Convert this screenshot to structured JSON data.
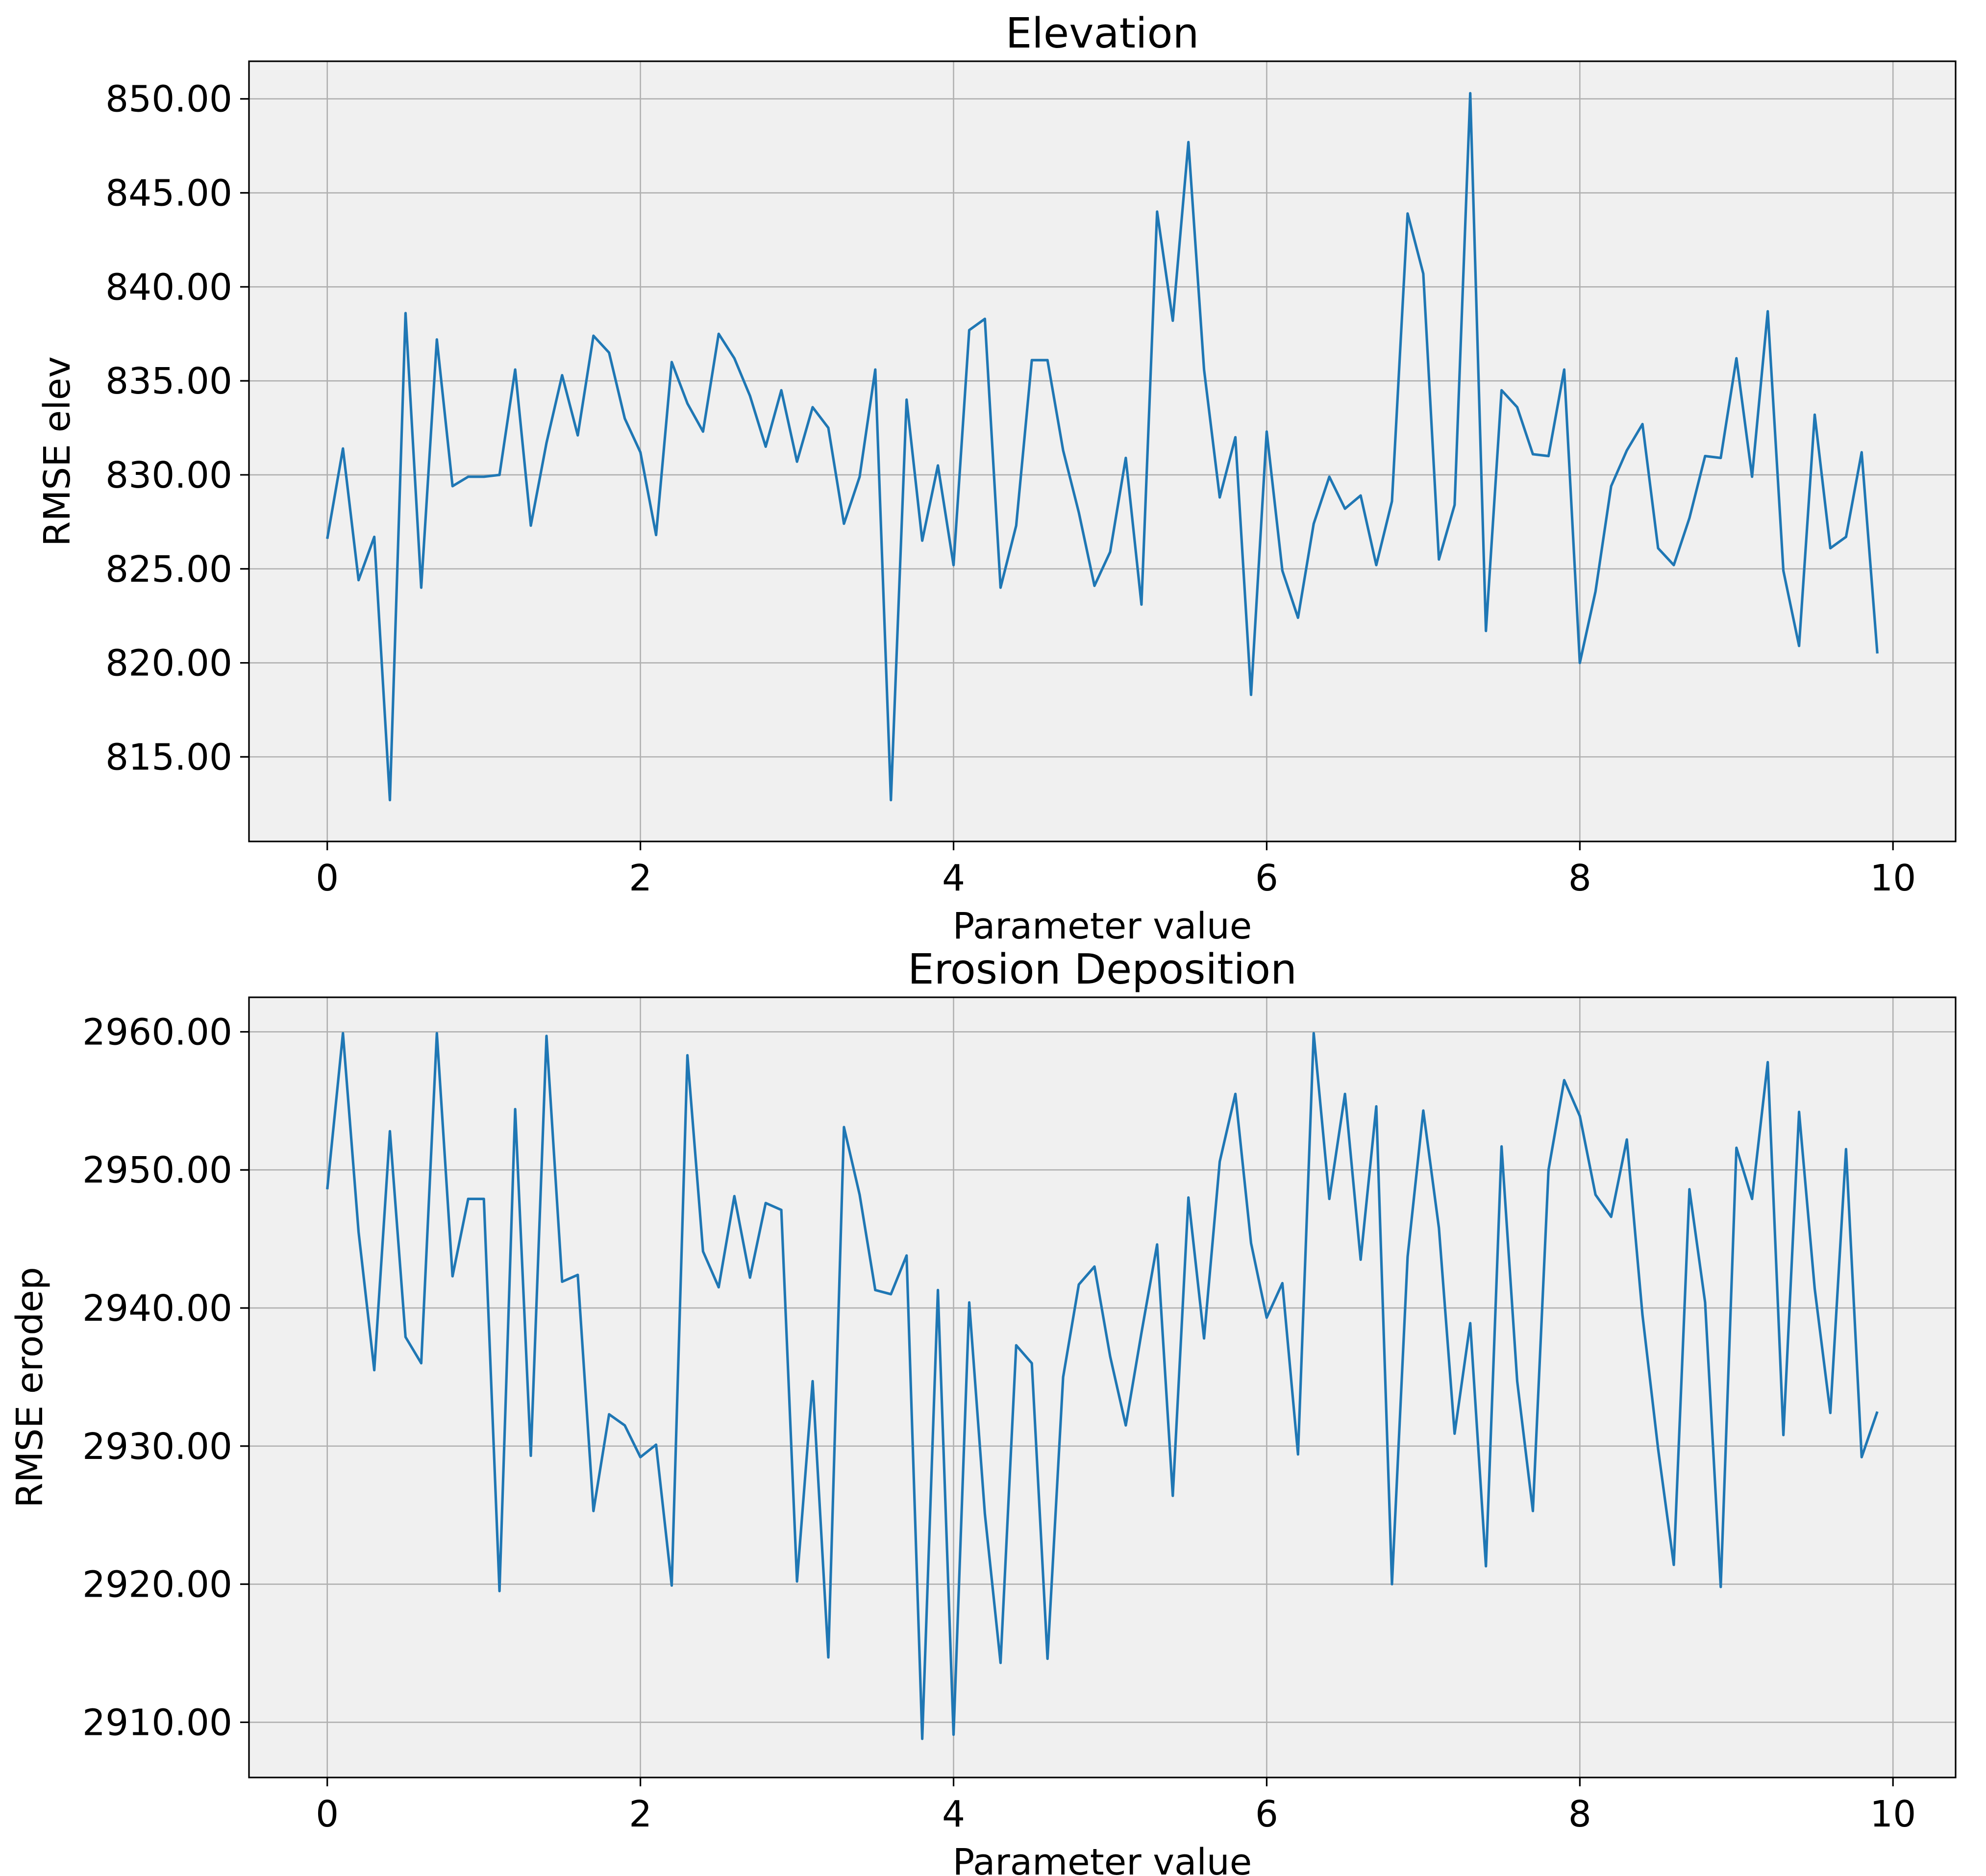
{
  "chart_data": [
    {
      "type": "line",
      "title": "Elevation",
      "xlabel": "Parameter value",
      "ylabel": "RMSE elev",
      "xlim": [
        -0.5,
        10.4
      ],
      "ylim": [
        810.5,
        852.0
      ],
      "xticks": [
        0,
        2,
        4,
        6,
        8,
        10
      ],
      "xtick_labels": [
        "0",
        "2",
        "4",
        "6",
        "8",
        "10"
      ],
      "yticks": [
        815,
        820,
        825,
        830,
        835,
        840,
        845,
        850
      ],
      "ytick_labels": [
        "815.00",
        "820.00",
        "825.00",
        "830.00",
        "835.00",
        "840.00",
        "845.00",
        "850.00"
      ],
      "grid": true,
      "series": [
        {
          "color": "#1f77b4",
          "x": [
            0.0,
            0.1,
            0.2,
            0.3,
            0.4,
            0.5,
            0.6,
            0.7,
            0.8,
            0.9,
            1.0,
            1.1,
            1.2,
            1.3,
            1.4,
            1.5,
            1.6,
            1.7,
            1.8,
            1.9,
            2.0,
            2.1,
            2.2,
            2.3,
            2.4,
            2.5,
            2.6,
            2.7,
            2.8,
            2.9,
            3.0,
            3.1,
            3.2,
            3.3,
            3.4,
            3.5,
            3.6,
            3.7,
            3.8,
            3.9,
            4.0,
            4.1,
            4.2,
            4.3,
            4.4,
            4.5,
            4.6,
            4.7,
            4.8,
            4.9,
            5.0,
            5.1,
            5.2,
            5.3,
            5.4,
            5.5,
            5.6,
            5.7,
            5.8,
            5.9,
            6.0,
            6.1,
            6.2,
            6.3,
            6.4,
            6.5,
            6.6,
            6.7,
            6.8,
            6.9,
            7.0,
            7.1,
            7.2,
            7.3,
            7.4,
            7.5,
            7.6,
            7.7,
            7.8,
            7.9,
            8.0,
            8.1,
            8.2,
            8.3,
            8.4,
            8.5,
            8.6,
            8.7,
            8.8,
            8.9,
            9.0,
            9.1,
            9.2,
            9.3,
            9.4,
            9.5,
            9.6,
            9.7,
            9.8,
            9.9
          ],
          "values": [
            826.6,
            831.4,
            824.4,
            826.7,
            812.7,
            838.6,
            824.0,
            837.2,
            829.4,
            829.9,
            829.9,
            830.0,
            835.6,
            827.3,
            831.7,
            835.3,
            832.1,
            837.4,
            836.5,
            833.0,
            831.2,
            826.8,
            836.0,
            833.8,
            832.3,
            837.5,
            836.2,
            834.2,
            831.5,
            834.5,
            830.7,
            833.6,
            832.5,
            827.4,
            829.9,
            835.6,
            812.7,
            834.0,
            826.5,
            830.5,
            825.2,
            837.7,
            838.3,
            824.0,
            827.3,
            836.1,
            836.1,
            831.3,
            828.0,
            824.1,
            825.9,
            830.9,
            823.1,
            844.0,
            838.2,
            847.7,
            835.6,
            828.8,
            832.0,
            818.3,
            832.3,
            824.9,
            822.4,
            827.4,
            829.9,
            828.2,
            828.9,
            825.2,
            828.6,
            843.9,
            840.7,
            825.5,
            828.4,
            850.3,
            821.7,
            834.5,
            833.6,
            831.1,
            831.0,
            835.6,
            820.0,
            823.8,
            829.4,
            831.3,
            832.7,
            826.1,
            825.2,
            827.7,
            831.0,
            830.9,
            836.2,
            829.9,
            838.7,
            824.9,
            820.9,
            833.2,
            826.1,
            826.7,
            831.2,
            820.5
          ]
        }
      ]
    },
    {
      "type": "line",
      "title": "Erosion Deposition",
      "xlabel": "Parameter value",
      "ylabel": "RMSE erodep",
      "xlim": [
        -0.5,
        10.4
      ],
      "ylim": [
        2906.0,
        2962.5
      ],
      "xticks": [
        0,
        2,
        4,
        6,
        8,
        10
      ],
      "xtick_labels": [
        "0",
        "2",
        "4",
        "6",
        "8",
        "10"
      ],
      "yticks": [
        2910,
        2920,
        2930,
        2940,
        2950,
        2960
      ],
      "ytick_labels": [
        "2910.00",
        "2920.00",
        "2930.00",
        "2940.00",
        "2950.00",
        "2960.00"
      ],
      "grid": true,
      "series": [
        {
          "color": "#1f77b4",
          "x": [
            0.0,
            0.1,
            0.2,
            0.3,
            0.4,
            0.5,
            0.6,
            0.7,
            0.8,
            0.9,
            1.0,
            1.1,
            1.2,
            1.3,
            1.4,
            1.5,
            1.6,
            1.7,
            1.8,
            1.9,
            2.0,
            2.1,
            2.2,
            2.3,
            2.4,
            2.5,
            2.6,
            2.7,
            2.8,
            2.9,
            3.0,
            3.1,
            3.2,
            3.3,
            3.4,
            3.5,
            3.6,
            3.7,
            3.8,
            3.9,
            4.0,
            4.1,
            4.2,
            4.3,
            4.4,
            4.5,
            4.6,
            4.7,
            4.8,
            4.9,
            5.0,
            5.1,
            5.2,
            5.3,
            5.4,
            5.5,
            5.6,
            5.7,
            5.8,
            5.9,
            6.0,
            6.1,
            6.2,
            6.3,
            6.4,
            6.5,
            6.6,
            6.7,
            6.8,
            6.9,
            7.0,
            7.1,
            7.2,
            7.3,
            7.4,
            7.5,
            7.6,
            7.7,
            7.8,
            7.9,
            8.0,
            8.1,
            8.2,
            8.3,
            8.4,
            8.5,
            8.6,
            8.7,
            8.8,
            8.9,
            9.0,
            9.1,
            9.2,
            9.3,
            9.4,
            9.5,
            9.6,
            9.7,
            9.8,
            9.9
          ],
          "values": [
            2948.6,
            2959.9,
            2945.5,
            2935.5,
            2952.8,
            2937.9,
            2936.0,
            2959.9,
            2942.3,
            2947.9,
            2947.9,
            2919.5,
            2954.4,
            2929.3,
            2959.7,
            2941.9,
            2942.4,
            2925.3,
            2932.3,
            2931.5,
            2929.2,
            2930.1,
            2919.9,
            2958.3,
            2944.1,
            2941.5,
            2948.1,
            2942.2,
            2947.6,
            2947.1,
            2920.2,
            2934.7,
            2914.7,
            2953.1,
            2948.2,
            2941.3,
            2941.0,
            2943.8,
            2908.8,
            2941.3,
            2909.1,
            2940.4,
            2925.1,
            2914.3,
            2937.3,
            2936.0,
            2914.6,
            2935.0,
            2941.7,
            2943.0,
            2936.5,
            2931.5,
            2938.2,
            2944.6,
            2926.4,
            2948.0,
            2937.8,
            2950.6,
            2955.5,
            2944.7,
            2939.3,
            2941.8,
            2929.4,
            2959.9,
            2947.9,
            2955.5,
            2943.5,
            2954.6,
            2920.0,
            2943.7,
            2954.3,
            2945.8,
            2930.9,
            2938.9,
            2921.3,
            2951.7,
            2934.7,
            2925.3,
            2950.0,
            2956.5,
            2953.9,
            2948.2,
            2946.6,
            2952.2,
            2939.5,
            2929.8,
            2921.4,
            2948.6,
            2940.4,
            2919.8,
            2951.6,
            2947.9,
            2957.8,
            2930.8,
            2954.2,
            2941.4,
            2932.4,
            2951.5,
            2929.2,
            2932.5
          ]
        }
      ]
    }
  ]
}
